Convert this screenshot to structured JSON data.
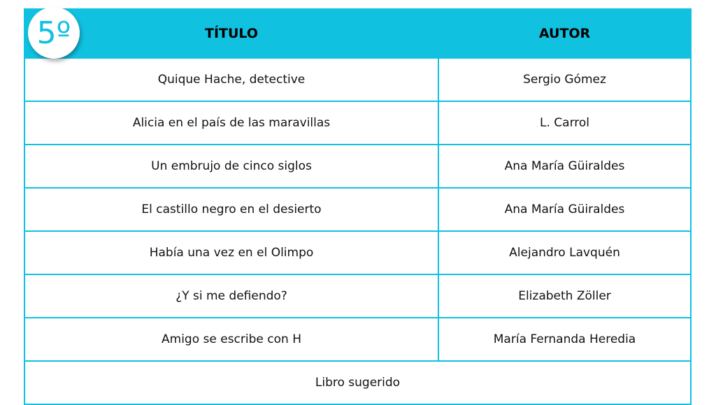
{
  "grade_badge": "5º",
  "headers": {
    "title": "TÍTULO",
    "author": "AUTOR"
  },
  "rows": [
    {
      "title": "Quique Hache, detective",
      "author": "Sergio Gómez"
    },
    {
      "title": "Alicia en el país de las maravillas",
      "author": "L. Carrol"
    },
    {
      "title": "Un embrujo de cinco siglos",
      "author": "Ana María Güiraldes"
    },
    {
      "title": "El castillo negro en el desierto",
      "author": "Ana María Güiraldes"
    },
    {
      "title": "Había una vez en el Olimpo",
      "author": "Alejandro Lavquén"
    },
    {
      "title": "¿Y si me defiendo?",
      "author": "Elizabeth Zöller"
    },
    {
      "title": "Amigo se escribe con H",
      "author": "María Fernanda Heredia"
    }
  ],
  "footer": "Libro sugerido",
  "colors": {
    "accent": "#10c1e0"
  }
}
